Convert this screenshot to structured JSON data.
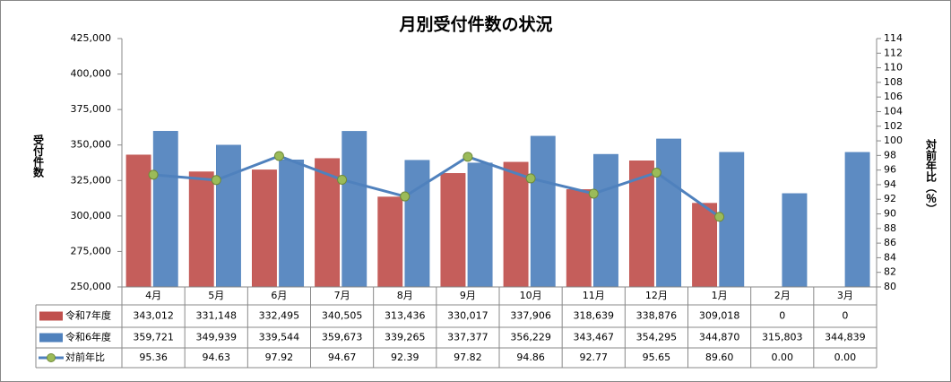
{
  "chart_data": {
    "type": "bar_line",
    "title": "月別受付件数の状況",
    "y_axis_title": "受付件数",
    "y2_axis_title": "対前年比（％）",
    "categories": [
      "4月",
      "5月",
      "6月",
      "7月",
      "8月",
      "9月",
      "10月",
      "11月",
      "12月",
      "1月",
      "2月",
      "3月"
    ],
    "series": [
      {
        "name": "令和7年度",
        "type": "bar",
        "color": "#c0504d",
        "values": [
          343012,
          331148,
          332495,
          340505,
          313436,
          330017,
          337906,
          318639,
          338876,
          309018,
          0,
          0
        ],
        "value_labels": [
          "343,012",
          "331,148",
          "332,495",
          "340,505",
          "313,436",
          "330,017",
          "337,906",
          "318,639",
          "338,876",
          "309,018",
          "0",
          "0"
        ]
      },
      {
        "name": "令和6年度",
        "type": "bar",
        "color": "#4f81bd",
        "values": [
          359721,
          349939,
          339544,
          359673,
          339265,
          337377,
          356229,
          343467,
          354295,
          344870,
          315803,
          344839
        ],
        "value_labels": [
          "359,721",
          "349,939",
          "339,544",
          "359,673",
          "339,265",
          "337,377",
          "356,229",
          "343,467",
          "354,295",
          "344,870",
          "315,803",
          "344,839"
        ]
      },
      {
        "name": "対前年比",
        "type": "line",
        "axis": "y2",
        "color": "#4f81bd",
        "marker_color": "#9bbb59",
        "values": [
          95.36,
          94.63,
          97.92,
          94.67,
          92.39,
          97.82,
          94.86,
          92.77,
          95.65,
          89.6,
          0,
          0
        ],
        "value_labels": [
          "95.36",
          "94.63",
          "97.92",
          "94.67",
          "92.39",
          "97.82",
          "94.86",
          "92.77",
          "95.65",
          "89.60",
          "0.00",
          "0.00"
        ]
      }
    ],
    "ylim": [
      250000,
      425000
    ],
    "yticks": [
      {
        "value": 250000,
        "label": "250,000"
      },
      {
        "value": 275000,
        "label": "275,000"
      },
      {
        "value": 300000,
        "label": "300,000"
      },
      {
        "value": 325000,
        "label": "325,000"
      },
      {
        "value": 350000,
        "label": "350,000"
      },
      {
        "value": 375000,
        "label": "375,000"
      },
      {
        "value": 400000,
        "label": "400,000"
      },
      {
        "value": 425000,
        "label": "425,000"
      }
    ],
    "y2lim": [
      80,
      114
    ],
    "y2ticks": [
      80,
      82,
      84,
      86,
      88,
      90,
      92,
      94,
      96,
      98,
      100,
      102,
      104,
      106,
      108,
      110,
      112,
      114
    ],
    "grid": false
  }
}
